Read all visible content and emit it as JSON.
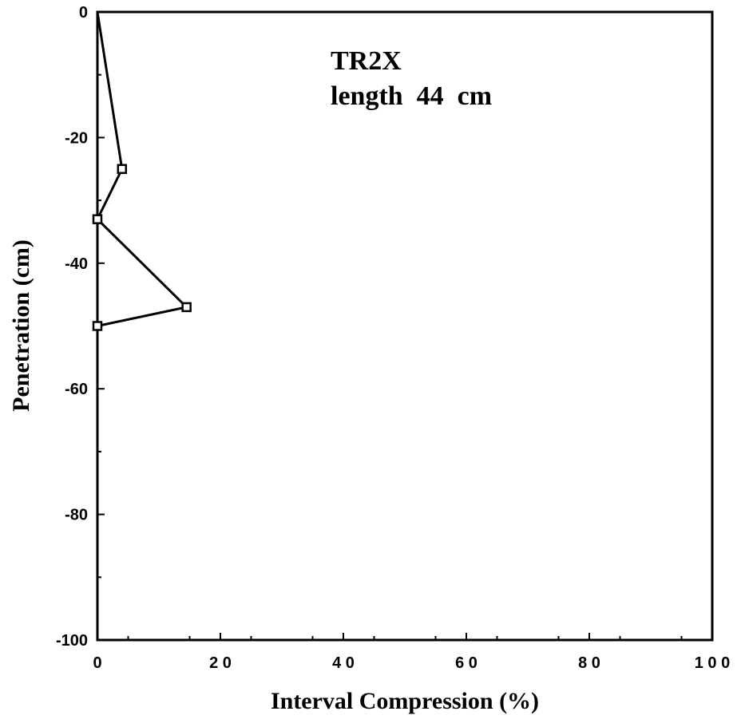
{
  "chart_data": {
    "type": "line",
    "title": "",
    "xlabel": "Interval Compression (%)",
    "ylabel": "Penetration (cm)",
    "xlim": [
      0,
      100
    ],
    "ylim": [
      -100,
      0
    ],
    "x_ticks": [
      0,
      20,
      40,
      60,
      80,
      100
    ],
    "x_tick_labels": [
      "0",
      "2 0",
      "4 0",
      "6 0",
      "8 0",
      "1 0 0"
    ],
    "y_ticks": [
      0,
      -20,
      -40,
      -60,
      -80,
      -100
    ],
    "y_tick_labels": [
      "0",
      "-20",
      "-40",
      "-60",
      "-80",
      "-100"
    ],
    "grid": false,
    "annotation": [
      "TR2X",
      "length  44  cm"
    ],
    "series": [
      {
        "marker": "square",
        "color": "#000000",
        "x": [
          0,
          4,
          0,
          14.5,
          0
        ],
        "y": [
          0,
          -25,
          -33,
          -47,
          -50
        ]
      }
    ]
  }
}
